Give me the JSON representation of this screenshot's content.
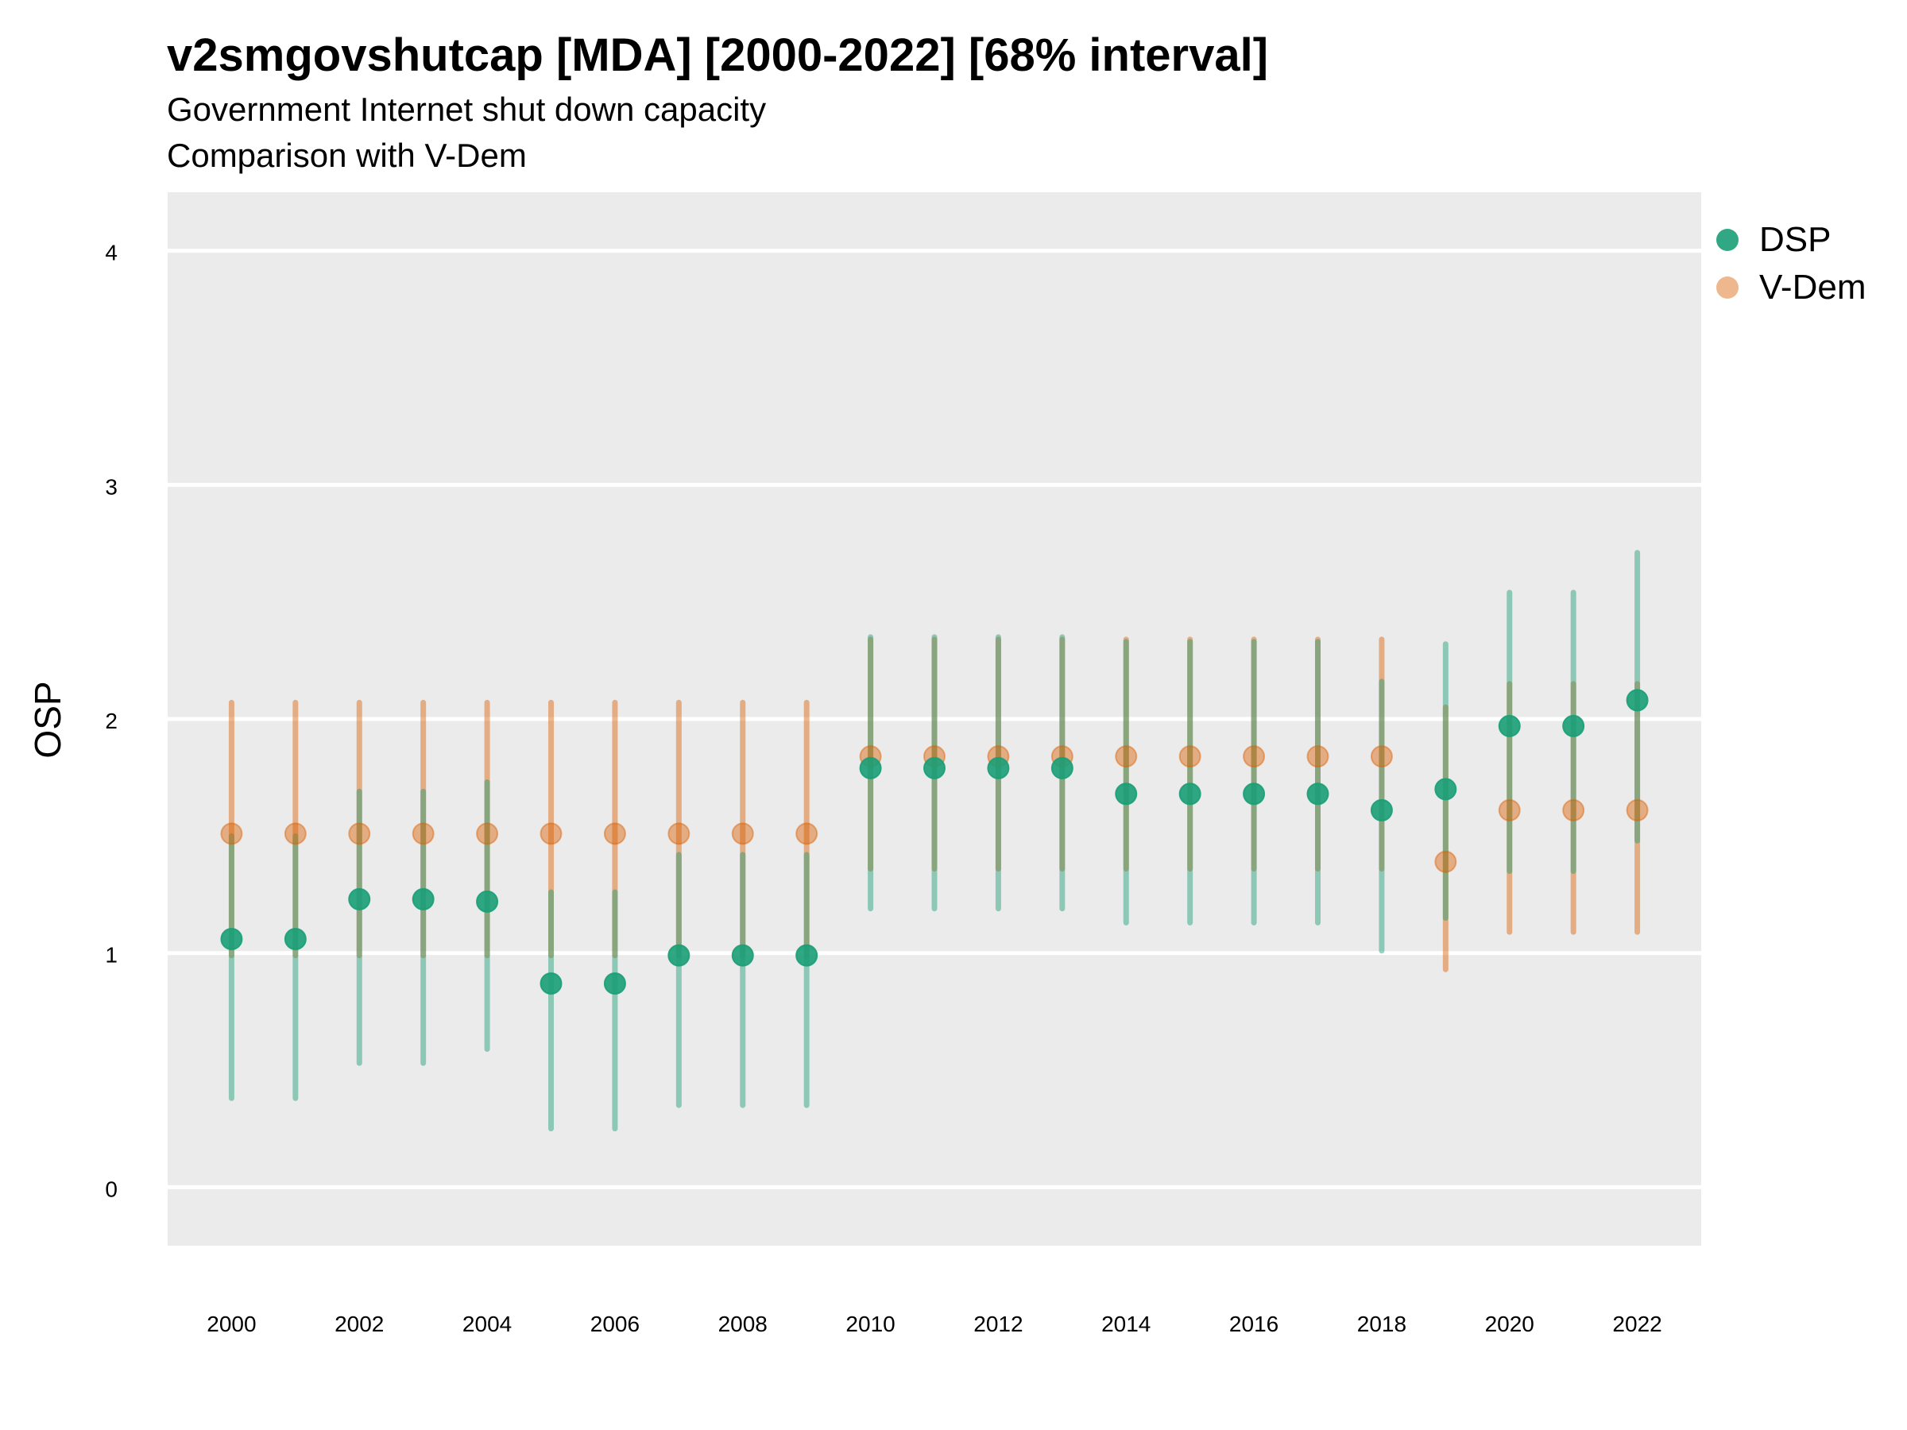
{
  "chart_data": {
    "type": "scatter",
    "title": "v2smgovshutcap [MDA] [2000-2022] [68% interval]",
    "subtitle": [
      "Government Internet shut down capacity",
      "Comparison with V-Dem"
    ],
    "xlabel": "",
    "ylabel": "OSP",
    "xlim": [
      1999,
      2023
    ],
    "ylim": [
      -0.25,
      4.25
    ],
    "x_ticks": [
      2000,
      2002,
      2004,
      2006,
      2008,
      2010,
      2012,
      2014,
      2016,
      2018,
      2020,
      2022
    ],
    "y_ticks": [
      0,
      1,
      2,
      3,
      4
    ],
    "grid": true,
    "legend_position": "right",
    "x": [
      2000,
      2001,
      2002,
      2003,
      2004,
      2005,
      2006,
      2007,
      2008,
      2009,
      2010,
      2011,
      2012,
      2013,
      2014,
      2015,
      2016,
      2017,
      2018,
      2019,
      2020,
      2021,
      2022
    ],
    "series": [
      {
        "name": "DSP",
        "color": "#1b9e77",
        "values": [
          1.06,
          1.06,
          1.23,
          1.23,
          1.22,
          0.87,
          0.87,
          0.99,
          0.99,
          0.99,
          1.79,
          1.79,
          1.79,
          1.79,
          1.68,
          1.68,
          1.68,
          1.68,
          1.61,
          1.7,
          1.97,
          1.97,
          2.08
        ],
        "lower": [
          0.38,
          0.38,
          0.53,
          0.53,
          0.59,
          0.25,
          0.25,
          0.35,
          0.35,
          0.35,
          1.19,
          1.19,
          1.19,
          1.19,
          1.13,
          1.13,
          1.13,
          1.13,
          1.01,
          1.15,
          1.35,
          1.35,
          1.48
        ],
        "upper": [
          1.5,
          1.5,
          1.69,
          1.69,
          1.73,
          1.26,
          1.26,
          1.42,
          1.42,
          1.42,
          2.35,
          2.35,
          2.35,
          2.35,
          2.33,
          2.33,
          2.33,
          2.33,
          2.16,
          2.32,
          2.54,
          2.54,
          2.71
        ]
      },
      {
        "name": "V-Dem",
        "color": "#d95f02",
        "values": [
          1.51,
          1.51,
          1.51,
          1.51,
          1.51,
          1.51,
          1.51,
          1.51,
          1.51,
          1.51,
          1.84,
          1.84,
          1.84,
          1.84,
          1.84,
          1.84,
          1.84,
          1.84,
          1.84,
          1.39,
          1.61,
          1.61,
          1.61
        ],
        "lower": [
          0.99,
          0.99,
          0.99,
          0.99,
          0.99,
          0.99,
          0.99,
          0.99,
          0.99,
          0.99,
          1.36,
          1.36,
          1.36,
          1.36,
          1.36,
          1.36,
          1.36,
          1.36,
          1.36,
          0.93,
          1.09,
          1.09,
          1.09
        ],
        "upper": [
          2.07,
          2.07,
          2.07,
          2.07,
          2.07,
          2.07,
          2.07,
          2.07,
          2.07,
          2.07,
          2.34,
          2.34,
          2.34,
          2.34,
          2.34,
          2.34,
          2.34,
          2.34,
          2.34,
          2.05,
          2.15,
          2.15,
          2.15
        ]
      }
    ]
  }
}
